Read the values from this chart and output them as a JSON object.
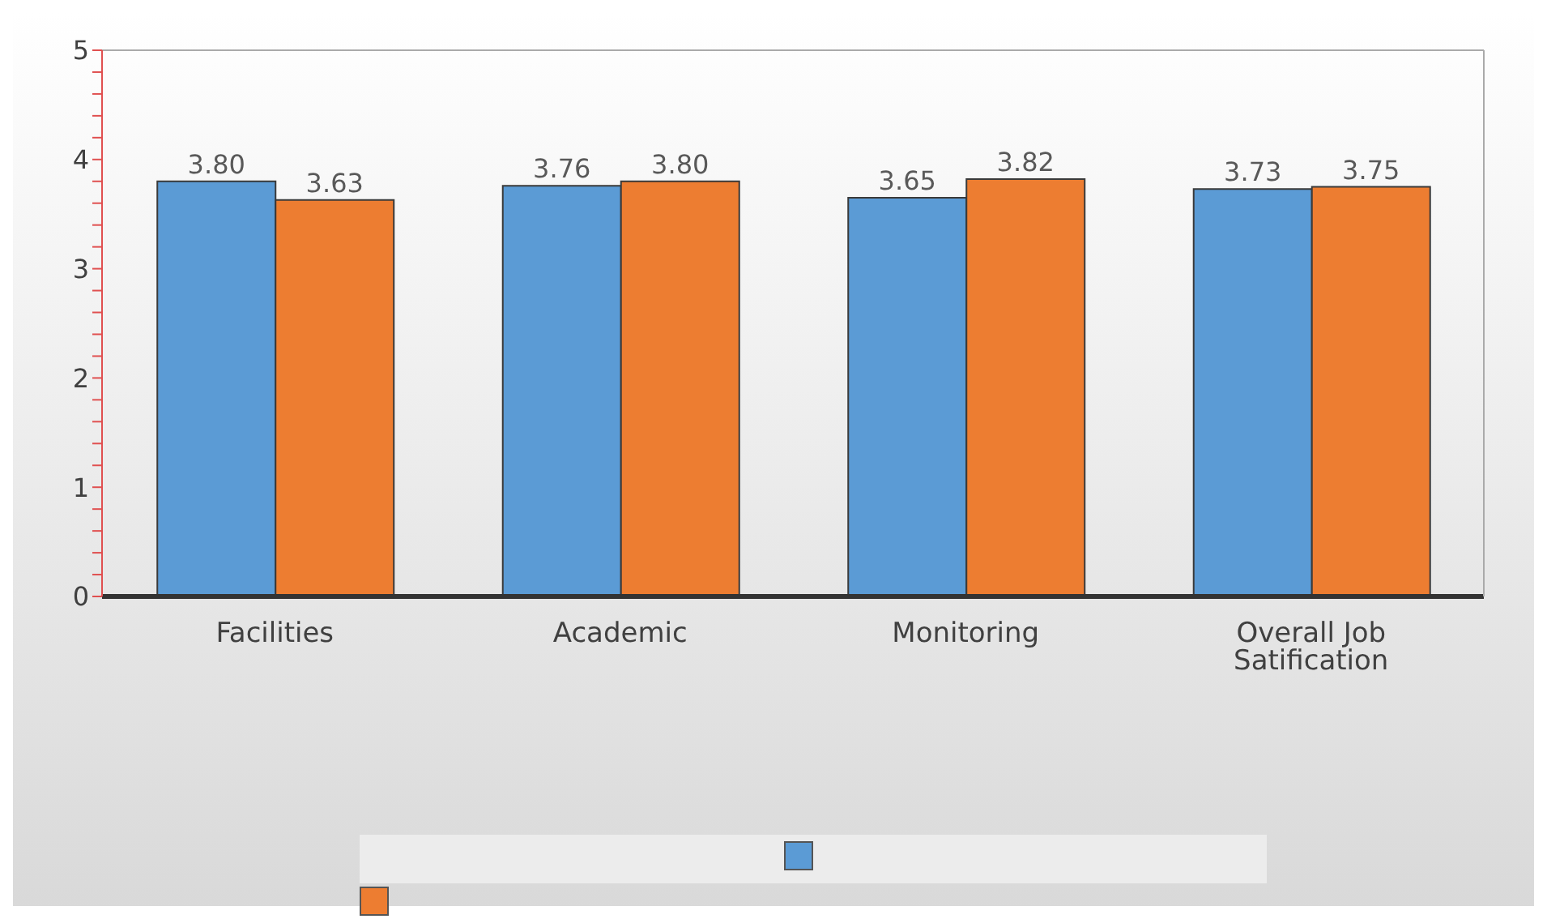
{
  "chart_data": {
    "type": "bar",
    "categories": [
      "Facilities",
      "Academic",
      "Monitoring",
      "Overall Job Satification"
    ],
    "series": [
      {
        "color": "#5b9bd5",
        "values": [
          3.8,
          3.76,
          3.65,
          3.73
        ],
        "value_labels": [
          "3.80",
          "3.76",
          "3.65",
          "3.73"
        ]
      },
      {
        "color": "#ed7d31",
        "values": [
          3.63,
          3.8,
          3.82,
          3.75
        ],
        "value_labels": [
          "3.63",
          "3.80",
          "3.82",
          "3.75"
        ]
      }
    ],
    "ylim": [
      0,
      5
    ],
    "yticks": [
      0,
      {
        "value": 0.2,
        "label": null
      },
      {
        "value": 0.4,
        "label": null
      },
      {
        "value": 0.6,
        "label": null
      },
      {
        "value": 0.8,
        "label": null
      },
      1,
      {
        "value": 1.2,
        "label": null
      },
      {
        "value": 1.4,
        "label": null
      },
      {
        "value": 1.6,
        "label": null
      },
      {
        "value": 1.8,
        "label": null
      },
      2,
      {
        "value": 2.2,
        "label": null
      },
      {
        "value": 2.4,
        "label": null
      },
      {
        "value": 2.6,
        "label": null
      },
      {
        "value": 2.8,
        "label": null
      },
      3,
      {
        "value": 3.2,
        "label": null
      },
      {
        "value": 3.4,
        "label": null
      },
      {
        "value": 3.6,
        "label": null
      },
      {
        "value": 3.8,
        "label": null
      },
      4,
      {
        "value": 4.2,
        "label": null
      },
      {
        "value": 4.4,
        "label": null
      },
      {
        "value": 4.6,
        "label": null
      },
      {
        "value": 4.8,
        "label": null
      },
      5
    ],
    "grid": false
  }
}
